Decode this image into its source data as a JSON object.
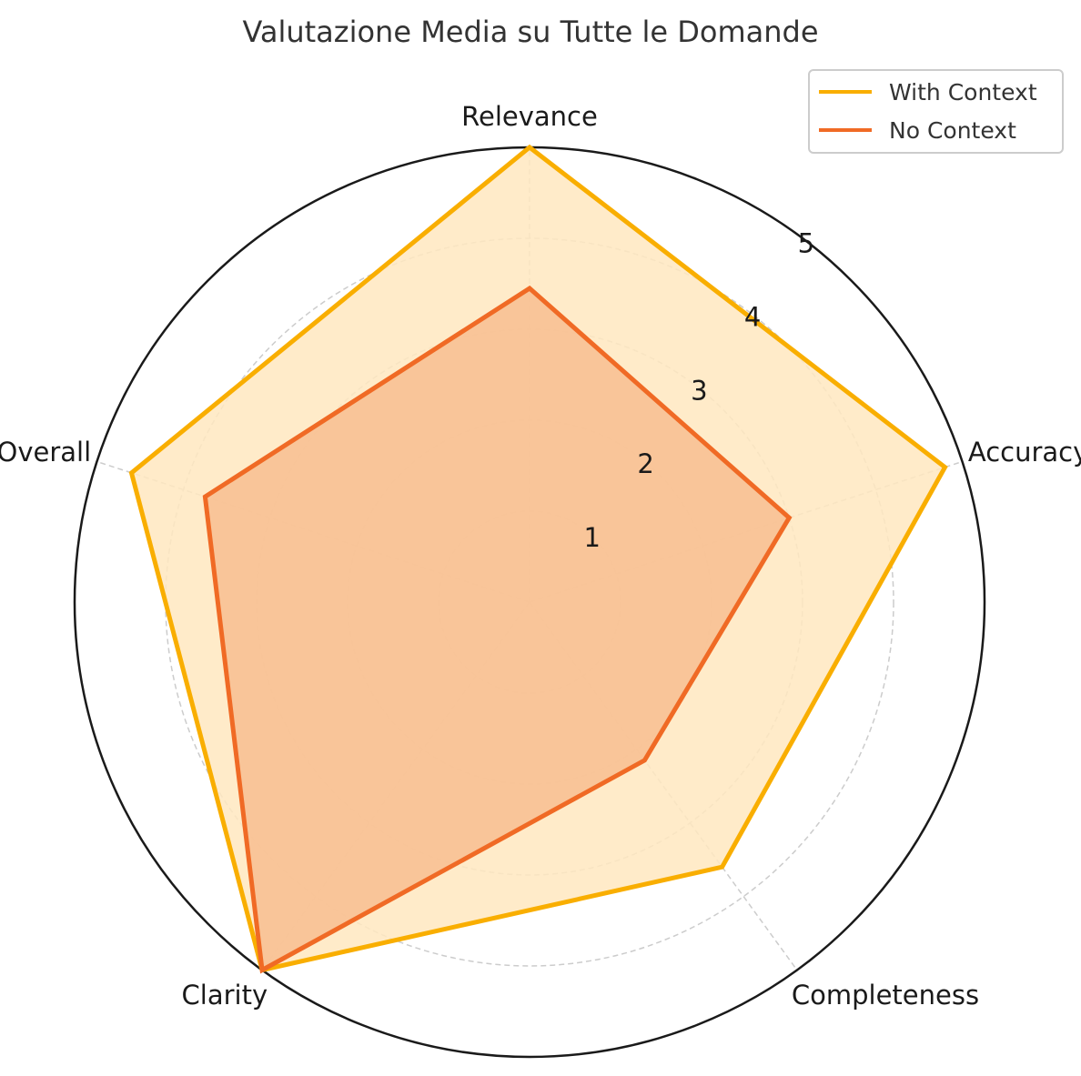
{
  "chart_data": {
    "type": "radar",
    "title": "Valutazione Media su Tutte le Domande",
    "axes": [
      "Relevance",
      "Accuracy",
      "Completeness",
      "Clarity",
      "Overall"
    ],
    "rlim": [
      0,
      5
    ],
    "radial_ticks": [
      1,
      2,
      3,
      4,
      5
    ],
    "grid": true,
    "legend_position": "top-right",
    "series": [
      {
        "name": "With Context",
        "values": [
          5.0,
          4.8,
          3.6,
          5.0,
          4.6
        ],
        "color": "#F9AE00",
        "fill": "#FFE8BF"
      },
      {
        "name": "No Context",
        "values": [
          3.45,
          3.0,
          2.15,
          5.0,
          3.75
        ],
        "color": "#F06A25",
        "fill": "#F8BE90"
      }
    ]
  }
}
